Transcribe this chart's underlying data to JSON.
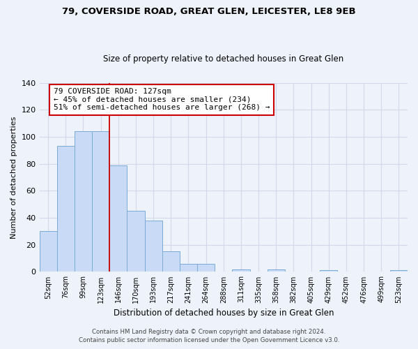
{
  "title1": "79, COVERSIDE ROAD, GREAT GLEN, LEICESTER, LE8 9EB",
  "title2": "Size of property relative to detached houses in Great Glen",
  "xlabel": "Distribution of detached houses by size in Great Glen",
  "ylabel": "Number of detached properties",
  "bar_labels": [
    "52sqm",
    "76sqm",
    "99sqm",
    "123sqm",
    "146sqm",
    "170sqm",
    "193sqm",
    "217sqm",
    "241sqm",
    "264sqm",
    "288sqm",
    "311sqm",
    "335sqm",
    "358sqm",
    "382sqm",
    "405sqm",
    "429sqm",
    "452sqm",
    "476sqm",
    "499sqm",
    "523sqm"
  ],
  "bar_heights": [
    30,
    93,
    104,
    104,
    79,
    45,
    38,
    15,
    6,
    6,
    0,
    2,
    0,
    2,
    0,
    0,
    1,
    0,
    0,
    0,
    1
  ],
  "bar_color": "#c8daf5",
  "bar_edge_color": "#7aaad4",
  "vline_x": 3.5,
  "vline_color": "#cc0000",
  "annotation_title": "79 COVERSIDE ROAD: 127sqm",
  "annotation_line1": "← 45% of detached houses are smaller (234)",
  "annotation_line2": "51% of semi-detached houses are larger (268) →",
  "annotation_box_color": "#ffffff",
  "annotation_box_edge": "#cc0000",
  "ylim": [
    0,
    140
  ],
  "yticks": [
    0,
    20,
    40,
    60,
    80,
    100,
    120,
    140
  ],
  "footer1": "Contains HM Land Registry data © Crown copyright and database right 2024.",
  "footer2": "Contains public sector information licensed under the Open Government Licence v3.0.",
  "bg_color": "#eef2fa"
}
